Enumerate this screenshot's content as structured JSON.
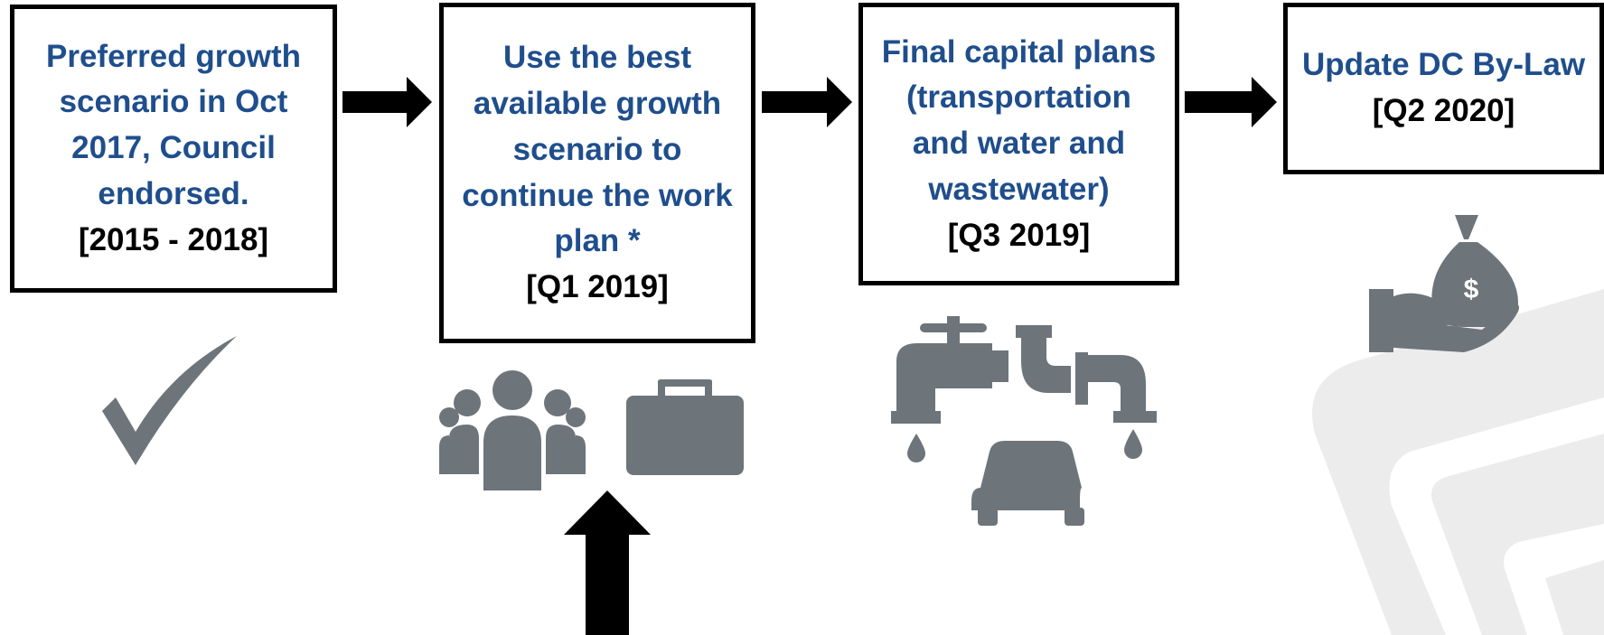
{
  "steps": [
    {
      "text": "Preferred growth scenario in Oct 2017, Council endorsed.",
      "date": "[2015 - 2018]"
    },
    {
      "text": "Use the best available growth scenario to continue the work plan *",
      "date": "[Q1 2019]"
    },
    {
      "text": "Final capital plans (transportation and water and wastewater)",
      "date": "[Q3 2019]"
    },
    {
      "text": "Update DC By-Law",
      "date": "[Q2 2020]"
    }
  ]
}
